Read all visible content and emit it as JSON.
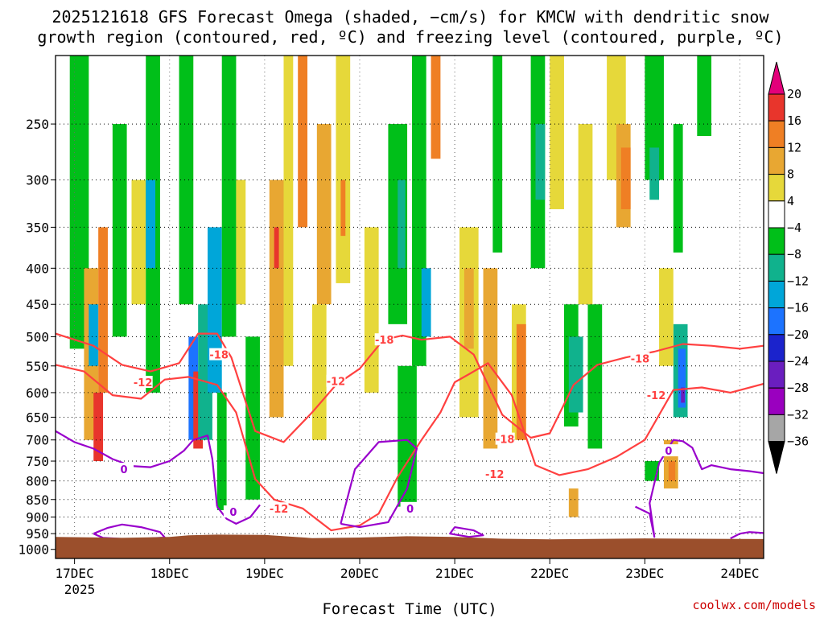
{
  "chart_data": {
    "type": "heatmap",
    "title_line1": "2025121618 GFS Forecast Omega (shaded, −cm/s) for KMCW with dendritic snow",
    "title_line2": "growth region (contoured, red, ºC) and freezing level (contoured, purple, ºC)",
    "xlabel": "Forecast Time (UTC)",
    "ylabel": "",
    "credit": "coolwx.com/models",
    "x_ticks": [
      "17DEC",
      "18DEC",
      "19DEC",
      "20DEC",
      "21DEC",
      "22DEC",
      "23DEC",
      "24DEC"
    ],
    "x_year": "2025",
    "x_range_days": [
      -0.2,
      7.25
    ],
    "y_ticks": [
      250,
      300,
      350,
      400,
      450,
      500,
      550,
      600,
      650,
      700,
      750,
      800,
      850,
      900,
      950,
      1000
    ],
    "y_range_hpa": [
      200,
      1030
    ],
    "colorbar": {
      "labels": [
        "20",
        "16",
        "12",
        "8",
        "4",
        "−4",
        "−8",
        "−12",
        "−16",
        "−20",
        "−24",
        "−28",
        "−32",
        "−36"
      ],
      "colors": [
        "#e3007a",
        "#e8352c",
        "#ef7f24",
        "#e8a732",
        "#e6d83a",
        "#ffffff",
        "#00bf19",
        "#10b28d",
        "#00a6d9",
        "#1c73ff",
        "#1b23cc",
        "#6a1ebf",
        "#9a00bf",
        "#a6a6a6",
        "#000000"
      ]
    },
    "contours": {
      "dgz_red": {
        "levels": [
          "-12",
          "-18"
        ],
        "color": "#ff4040",
        "minus12": {
          "x": [
            -0.2,
            0.1,
            0.4,
            0.7,
            0.95,
            1.2,
            1.5,
            1.7,
            1.9,
            2.1,
            2.4,
            2.7,
            3.0,
            3.2,
            3.4,
            3.65,
            3.85,
            4.0,
            4.15,
            4.35,
            4.6,
            4.85,
            5.1,
            5.4,
            5.7,
            6.0,
            6.3,
            6.6,
            6.9,
            7.25
          ],
          "p": [
            548,
            560,
            605,
            612,
            575,
            570,
            585,
            640,
            795,
            850,
            875,
            940,
            925,
            890,
            790,
            700,
            640,
            580,
            565,
            545,
            605,
            760,
            785,
            770,
            740,
            700,
            595,
            590,
            600,
            583
          ]
        },
        "minus18": {
          "x": [
            -0.2,
            0.2,
            0.5,
            0.8,
            1.1,
            1.3,
            1.5,
            1.65,
            1.9,
            2.2,
            2.5,
            2.75,
            3.0,
            3.25,
            3.45,
            3.65,
            3.95,
            4.2,
            4.5,
            4.8,
            5.0,
            5.25,
            5.5,
            5.8,
            6.1,
            6.4,
            6.7,
            7.0,
            7.25
          ],
          "p": [
            495,
            515,
            548,
            560,
            545,
            495,
            495,
            535,
            680,
            705,
            640,
            585,
            555,
            505,
            498,
            505,
            500,
            530,
            645,
            695,
            685,
            585,
            548,
            535,
            525,
            512,
            515,
            520,
            515
          ]
        }
      },
      "freezing_purple": {
        "level": "0",
        "color": "#9900cc",
        "curves": [
          {
            "x": [
              -0.2,
              0.0,
              0.2,
              0.4,
              0.6,
              0.8,
              1.0,
              1.15,
              1.25,
              1.4,
              1.45,
              1.5
            ],
            "p": [
              680,
              705,
              720,
              745,
              762,
              765,
              750,
              725,
              700,
              690,
              745,
              870
            ]
          },
          {
            "x": [
              1.5,
              1.6,
              1.7,
              1.85,
              1.95
            ],
            "p": [
              870,
              905,
              920,
              900,
              865
            ]
          },
          {
            "x": [
              0.2,
              0.35,
              0.5,
              0.7,
              0.9,
              0.95,
              0.6,
              0.3,
              0.2
            ],
            "p": [
              950,
              932,
              922,
              930,
              945,
              962,
              968,
              963,
              950
            ]
          },
          {
            "x": [
              2.8,
              3.0,
              3.3,
              3.5,
              3.6,
              3.5,
              3.2,
              2.95,
              2.8
            ],
            "p": [
              920,
              930,
              915,
              820,
              720,
              700,
              705,
              770,
              920
            ]
          },
          {
            "x": [
              4.0,
              4.2,
              4.3,
              4.15,
              3.95,
              4.0
            ],
            "p": [
              930,
              940,
              955,
              960,
              950,
              930
            ]
          },
          {
            "x": [
              5.9,
              6.05,
              6.1,
              6.05,
              6.15,
              6.3,
              6.4,
              6.5,
              6.6,
              6.7,
              6.9,
              7.1,
              7.25
            ],
            "p": [
              870,
              890,
              960,
              860,
              755,
              700,
              703,
              718,
              770,
              760,
              770,
              775,
              780
            ]
          },
          {
            "x": [
              6.9,
              7.0,
              7.1,
              7.25
            ],
            "p": [
              965,
              950,
              945,
              948
            ]
          }
        ]
      },
      "contour_labels": [
        {
          "text": "-18",
          "x": 1.52,
          "p": 530,
          "color": "red"
        },
        {
          "text": "-12",
          "x": 0.72,
          "p": 580,
          "color": "red"
        },
        {
          "text": "-18",
          "x": 3.26,
          "p": 505,
          "color": "red"
        },
        {
          "text": "-12",
          "x": 2.75,
          "p": 578,
          "color": "red"
        },
        {
          "text": "-12",
          "x": 2.15,
          "p": 876,
          "color": "red"
        },
        {
          "text": "-18",
          "x": 4.53,
          "p": 698,
          "color": "red"
        },
        {
          "text": "-12",
          "x": 4.42,
          "p": 782,
          "color": "red"
        },
        {
          "text": "-18",
          "x": 5.95,
          "p": 537,
          "color": "red"
        },
        {
          "text": "-12",
          "x": 6.12,
          "p": 605,
          "color": "red"
        },
        {
          "text": "0",
          "x": 0.52,
          "p": 770,
          "color": "purple"
        },
        {
          "text": "0",
          "x": 1.67,
          "p": 885,
          "color": "purple"
        },
        {
          "text": "0",
          "x": 3.53,
          "p": 875,
          "color": "purple"
        },
        {
          "text": "0",
          "x": 6.25,
          "p": 725,
          "color": "purple"
        }
      ]
    },
    "omega_features": [
      {
        "x0": -0.05,
        "x1": 0.15,
        "p0": 200,
        "p1": 520,
        "cls": 6
      },
      {
        "x0": 0.1,
        "x1": 0.25,
        "p0": 400,
        "p1": 700,
        "cls": 3
      },
      {
        "x0": 0.25,
        "x1": 0.35,
        "p0": 350,
        "p1": 600,
        "cls": 2
      },
      {
        "x0": 0.15,
        "x1": 0.25,
        "p0": 450,
        "p1": 550,
        "cls": 8
      },
      {
        "x0": 0.2,
        "x1": 0.3,
        "p0": 600,
        "p1": 750,
        "cls": 1
      },
      {
        "x0": 0.4,
        "x1": 0.55,
        "p0": 250,
        "p1": 500,
        "cls": 6
      },
      {
        "x0": 0.6,
        "x1": 0.75,
        "p0": 300,
        "p1": 450,
        "cls": 4
      },
      {
        "x0": 0.75,
        "x1": 0.9,
        "p0": 200,
        "p1": 600,
        "cls": 6
      },
      {
        "x0": 0.75,
        "x1": 0.85,
        "p0": 300,
        "p1": 400,
        "cls": 8
      },
      {
        "x0": 1.1,
        "x1": 1.25,
        "p0": 200,
        "p1": 450,
        "cls": 6
      },
      {
        "x0": 1.2,
        "x1": 1.3,
        "p0": 500,
        "p1": 700,
        "cls": 9
      },
      {
        "x0": 1.25,
        "x1": 1.35,
        "p0": 560,
        "p1": 720,
        "cls": 1
      },
      {
        "x0": 1.3,
        "x1": 1.45,
        "p0": 450,
        "p1": 700,
        "cls": 7
      },
      {
        "x0": 1.4,
        "x1": 1.55,
        "p0": 350,
        "p1": 600,
        "cls": 8
      },
      {
        "x0": 1.55,
        "x1": 1.7,
        "p0": 200,
        "p1": 500,
        "cls": 6
      },
      {
        "x0": 1.5,
        "x1": 1.6,
        "p0": 600,
        "p1": 880,
        "cls": 6
      },
      {
        "x0": 1.7,
        "x1": 1.8,
        "p0": 300,
        "p1": 450,
        "cls": 4
      },
      {
        "x0": 1.8,
        "x1": 1.95,
        "p0": 500,
        "p1": 850,
        "cls": 6
      },
      {
        "x0": 2.05,
        "x1": 2.2,
        "p0": 300,
        "p1": 650,
        "cls": 3
      },
      {
        "x0": 2.1,
        "x1": 2.15,
        "p0": 350,
        "p1": 400,
        "cls": 1
      },
      {
        "x0": 2.2,
        "x1": 2.3,
        "p0": 200,
        "p1": 550,
        "cls": 4
      },
      {
        "x0": 2.35,
        "x1": 2.45,
        "p0": 200,
        "p1": 350,
        "cls": 2
      },
      {
        "x0": 2.5,
        "x1": 2.65,
        "p0": 450,
        "p1": 700,
        "cls": 4
      },
      {
        "x0": 2.55,
        "x1": 2.7,
        "p0": 250,
        "p1": 450,
        "cls": 3
      },
      {
        "x0": 2.75,
        "x1": 2.9,
        "p0": 200,
        "p1": 420,
        "cls": 4
      },
      {
        "x0": 2.8,
        "x1": 2.85,
        "p0": 300,
        "p1": 360,
        "cls": 2
      },
      {
        "x0": 3.05,
        "x1": 3.2,
        "p0": 350,
        "p1": 600,
        "cls": 4
      },
      {
        "x0": 3.3,
        "x1": 3.5,
        "p0": 250,
        "p1": 480,
        "cls": 6
      },
      {
        "x0": 3.4,
        "x1": 3.48,
        "p0": 300,
        "p1": 400,
        "cls": 7
      },
      {
        "x0": 3.55,
        "x1": 3.7,
        "p0": 200,
        "p1": 550,
        "cls": 6
      },
      {
        "x0": 3.65,
        "x1": 3.75,
        "p0": 400,
        "p1": 500,
        "cls": 8
      },
      {
        "x0": 3.4,
        "x1": 3.6,
        "p0": 550,
        "p1": 870,
        "cls": 6
      },
      {
        "x0": 3.75,
        "x1": 3.85,
        "p0": 200,
        "p1": 280,
        "cls": 2
      },
      {
        "x0": 4.05,
        "x1": 4.25,
        "p0": 350,
        "p1": 650,
        "cls": 4
      },
      {
        "x0": 4.1,
        "x1": 4.2,
        "p0": 400,
        "p1": 520,
        "cls": 3
      },
      {
        "x0": 4.3,
        "x1": 4.45,
        "p0": 400,
        "p1": 720,
        "cls": 3
      },
      {
        "x0": 4.4,
        "x1": 4.5,
        "p0": 200,
        "p1": 380,
        "cls": 6
      },
      {
        "x0": 4.6,
        "x1": 4.75,
        "p0": 450,
        "p1": 700,
        "cls": 4
      },
      {
        "x0": 4.65,
        "x1": 4.75,
        "p0": 480,
        "p1": 700,
        "cls": 2
      },
      {
        "x0": 4.8,
        "x1": 4.95,
        "p0": 200,
        "p1": 400,
        "cls": 6
      },
      {
        "x0": 4.85,
        "x1": 4.95,
        "p0": 250,
        "p1": 320,
        "cls": 7
      },
      {
        "x0": 5.0,
        "x1": 5.15,
        "p0": 200,
        "p1": 330,
        "cls": 4
      },
      {
        "x0": 5.15,
        "x1": 5.3,
        "p0": 450,
        "p1": 670,
        "cls": 6
      },
      {
        "x0": 5.2,
        "x1": 5.35,
        "p0": 500,
        "p1": 640,
        "cls": 7
      },
      {
        "x0": 5.4,
        "x1": 5.55,
        "p0": 450,
        "p1": 720,
        "cls": 6
      },
      {
        "x0": 5.3,
        "x1": 5.45,
        "p0": 250,
        "p1": 450,
        "cls": 4
      },
      {
        "x0": 5.2,
        "x1": 5.3,
        "p0": 820,
        "p1": 900,
        "cls": 3
      },
      {
        "x0": 5.6,
        "x1": 5.8,
        "p0": 200,
        "p1": 300,
        "cls": 4
      },
      {
        "x0": 5.7,
        "x1": 5.85,
        "p0": 250,
        "p1": 350,
        "cls": 3
      },
      {
        "x0": 5.75,
        "x1": 5.85,
        "p0": 270,
        "p1": 330,
        "cls": 2
      },
      {
        "x0": 6.0,
        "x1": 6.2,
        "p0": 200,
        "p1": 300,
        "cls": 6
      },
      {
        "x0": 6.05,
        "x1": 6.15,
        "p0": 270,
        "p1": 320,
        "cls": 7
      },
      {
        "x0": 6.3,
        "x1": 6.4,
        "p0": 250,
        "p1": 380,
        "cls": 6
      },
      {
        "x0": 6.3,
        "x1": 6.45,
        "p0": 480,
        "p1": 650,
        "cls": 7
      },
      {
        "x0": 6.35,
        "x1": 6.43,
        "p0": 520,
        "p1": 630,
        "cls": 9
      },
      {
        "x0": 6.38,
        "x1": 6.42,
        "p0": 590,
        "p1": 620,
        "cls": 11
      },
      {
        "x0": 6.2,
        "x1": 6.35,
        "p0": 700,
        "p1": 820,
        "cls": 3
      },
      {
        "x0": 6.25,
        "x1": 6.32,
        "p0": 750,
        "p1": 800,
        "cls": 2
      },
      {
        "x0": 6.0,
        "x1": 6.15,
        "p0": 750,
        "p1": 800,
        "cls": 6
      },
      {
        "x0": 6.55,
        "x1": 6.7,
        "p0": 200,
        "p1": 260,
        "cls": 6
      },
      {
        "x0": 6.15,
        "x1": 6.3,
        "p0": 400,
        "p1": 550,
        "cls": 4
      }
    ]
  }
}
